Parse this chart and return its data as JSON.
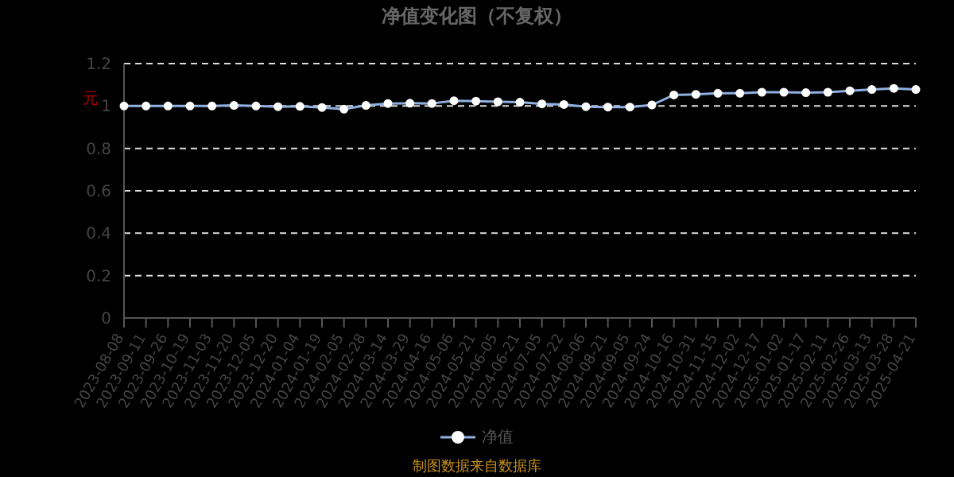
{
  "chart_data": {
    "type": "line",
    "title": "净值变化图（不复权）",
    "ylabel": "元",
    "annotations": [
      "制图数据来自数据库"
    ],
    "categories": [
      "2023-08-08",
      "2023-09-11",
      "2023-09-26",
      "2023-10-19",
      "2023-11-03",
      "2023-11-20",
      "2023-12-05",
      "2023-12-20",
      "2024-01-04",
      "2024-01-19",
      "2024-02-05",
      "2024-02-28",
      "2024-03-14",
      "2024-03-29",
      "2024-04-16",
      "2024-05-06",
      "2024-05-21",
      "2024-06-05",
      "2024-06-21",
      "2024-07-05",
      "2024-07-22",
      "2024-08-06",
      "2024-08-21",
      "2024-09-05",
      "2024-09-24",
      "2024-10-16",
      "2024-10-31",
      "2024-11-15",
      "2024-12-02",
      "2024-12-17",
      "2025-01-02",
      "2025-01-17",
      "2025-02-11",
      "2025-02-26",
      "2025-03-13",
      "2025-03-28",
      "2025-04-21"
    ],
    "series": [
      {
        "name": "净值",
        "color": "#8fb0e0",
        "values": [
          1.0,
          1.0,
          1.0,
          1.0,
          1.0,
          1.003,
          1.0,
          0.997,
          0.998,
          0.993,
          0.985,
          1.003,
          1.012,
          1.013,
          1.012,
          1.025,
          1.023,
          1.02,
          1.018,
          1.01,
          1.007,
          0.997,
          0.995,
          0.995,
          1.005,
          1.052,
          1.055,
          1.06,
          1.06,
          1.065,
          1.065,
          1.063,
          1.065,
          1.072,
          1.078,
          1.083,
          1.078
        ]
      }
    ],
    "ylim": [
      0,
      1.2
    ],
    "yticks": [
      0,
      0.2,
      0.4,
      0.6,
      0.8,
      1,
      1.2
    ],
    "grid": "y",
    "legend": "bottom",
    "marker": "circle",
    "line_style": "solid"
  }
}
